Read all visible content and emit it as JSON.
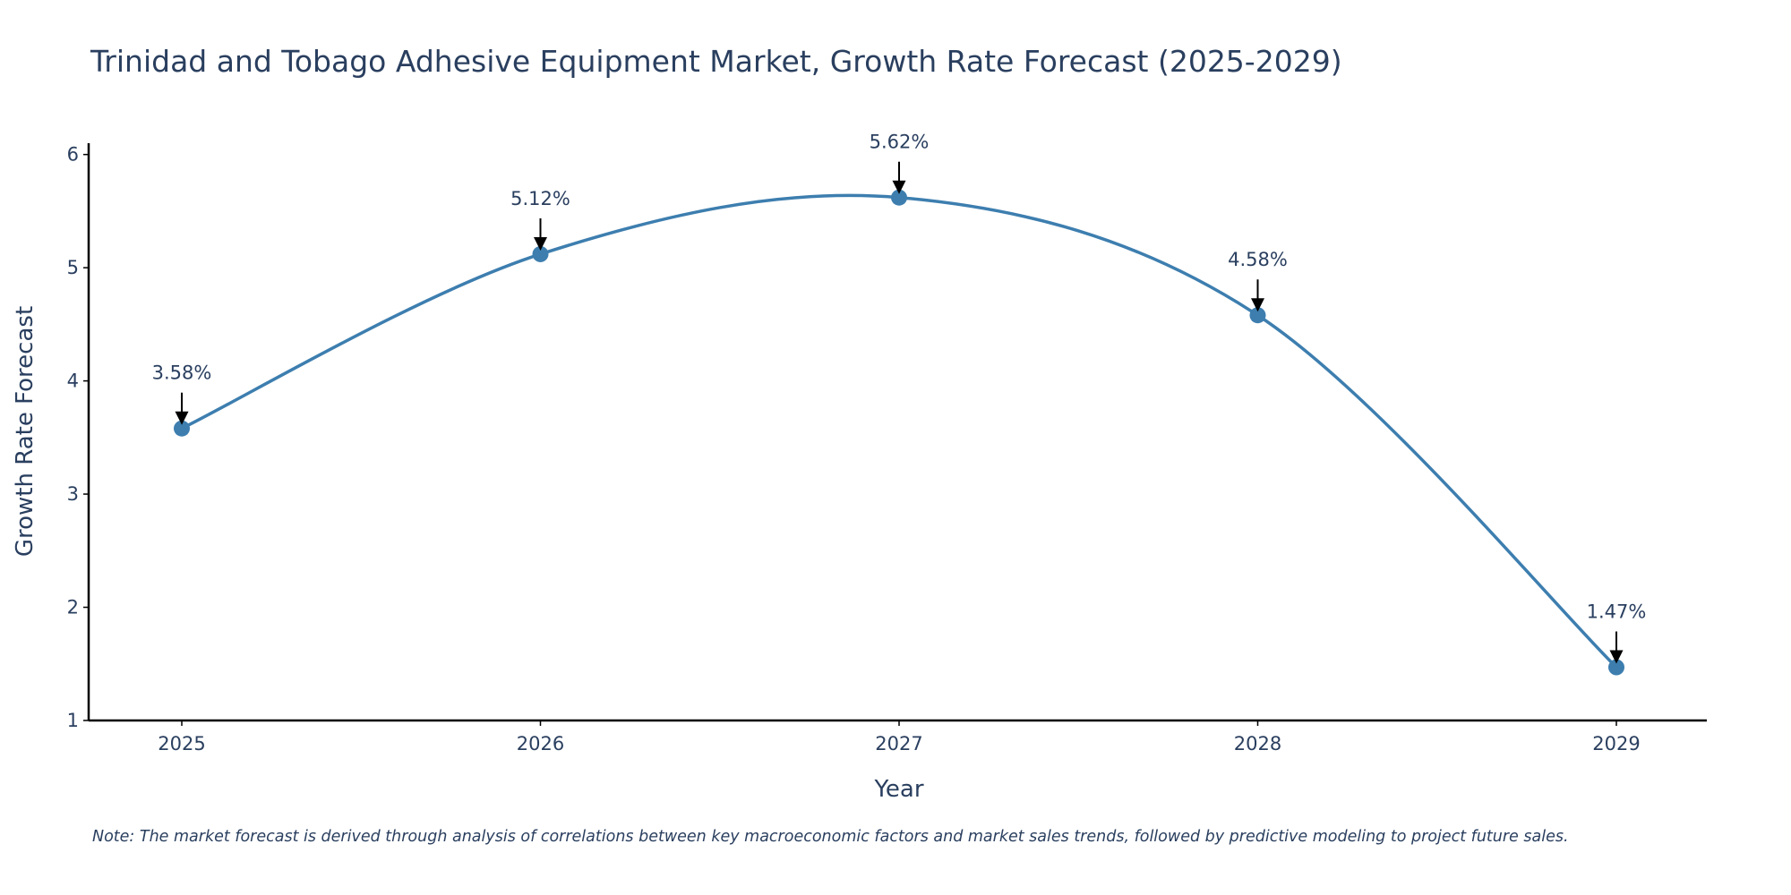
{
  "chart_data": {
    "type": "line",
    "title": "Trinidad and Tobago Adhesive Equipment Market, Growth Rate Forecast (2025-2029)",
    "xlabel": "Year",
    "ylabel": "Growth Rate Forecast",
    "categories": [
      "2025",
      "2026",
      "2027",
      "2028",
      "2029"
    ],
    "series": [
      {
        "name": "Growth Rate Forecast",
        "values": [
          3.58,
          5.12,
          5.62,
          4.58,
          1.47
        ],
        "color": "#3d7eaf"
      }
    ],
    "data_labels": [
      "3.58%",
      "5.12%",
      "5.62%",
      "4.58%",
      "1.47%"
    ],
    "ylim": [
      1,
      6.1
    ],
    "yticks": [
      1,
      2,
      3,
      4,
      5,
      6
    ],
    "grid": false,
    "smooth": true,
    "note": "Note: The market forecast is derived through analysis of correlations between key macroeconomic factors and market sales trends, followed by predictive modeling to project future sales."
  }
}
